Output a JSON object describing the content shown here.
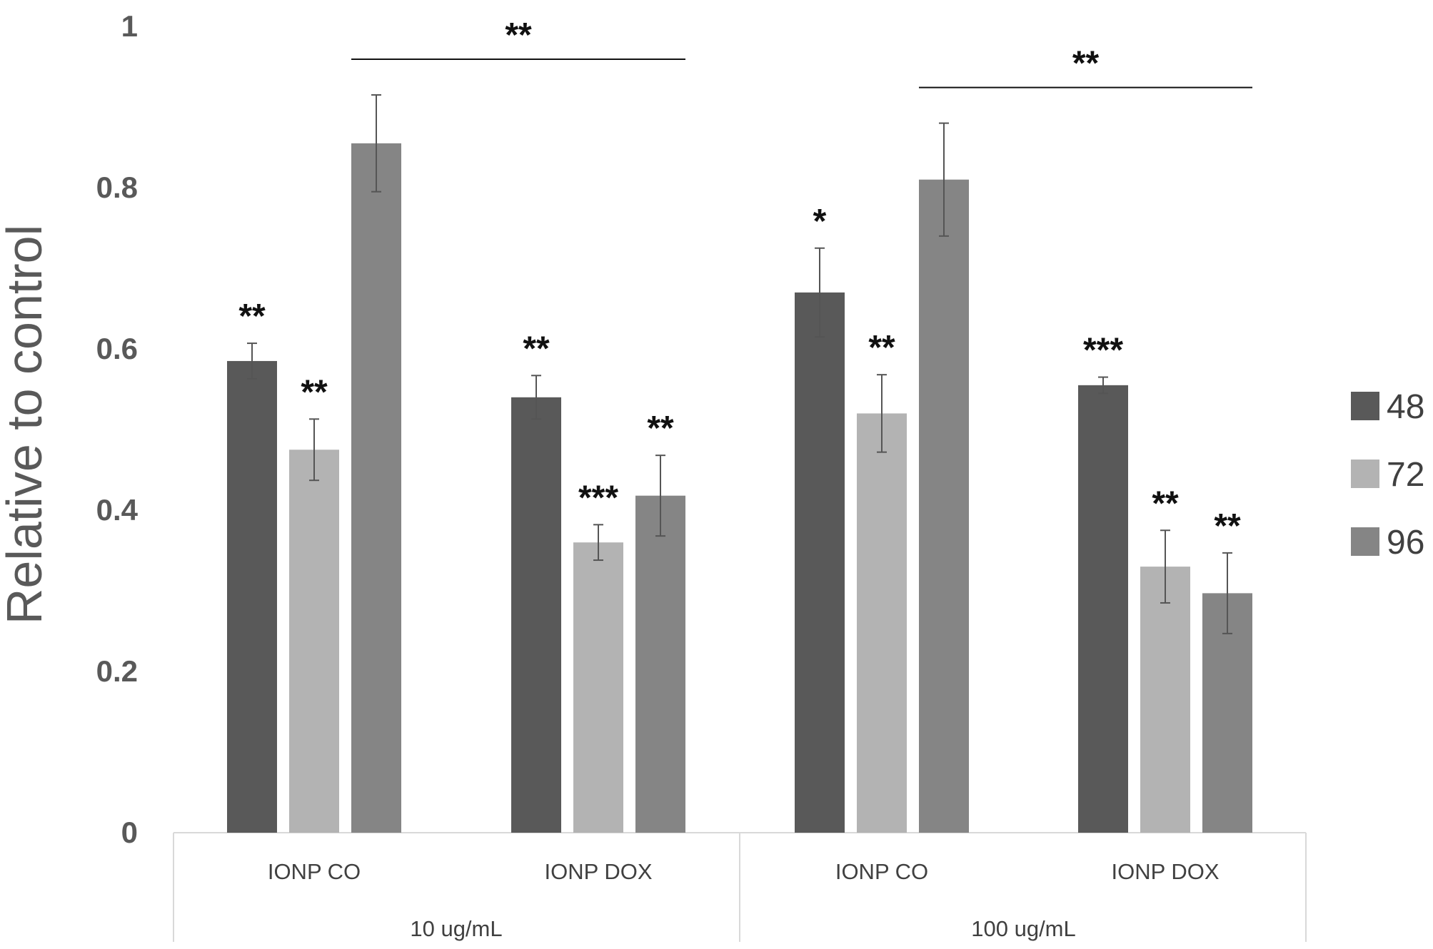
{
  "chart_data": {
    "type": "bar",
    "title": "",
    "ylabel": "Relative to control",
    "xlabel": "",
    "ylim": [
      0,
      1
    ],
    "yticks": [
      "0",
      "0.2",
      "0.4",
      "0.6",
      "0.8",
      "1"
    ],
    "grid": false,
    "legend_position": "right",
    "categories": [
      "IONP CO",
      "IONP DOX",
      "IONP CO",
      "IONP DOX"
    ],
    "groups": [
      {
        "label": "10 ug/mL",
        "categories": [
          0,
          1
        ]
      },
      {
        "label": "100 ug/mL",
        "categories": [
          2,
          3
        ]
      }
    ],
    "series": [
      {
        "name": "48",
        "color": "#595959",
        "values": [
          0.585,
          0.54,
          0.67,
          0.555
        ],
        "errors": [
          0.022,
          0.027,
          0.055,
          0.01
        ],
        "significance": [
          "**",
          "**",
          "*",
          "***"
        ]
      },
      {
        "name": "72",
        "color": "#b3b3b3",
        "values": [
          0.475,
          0.36,
          0.52,
          0.33
        ],
        "errors": [
          0.038,
          0.022,
          0.048,
          0.045
        ],
        "significance": [
          "**",
          "***",
          "**",
          "**"
        ]
      },
      {
        "name": "96",
        "color": "#858585",
        "values": [
          0.855,
          0.418,
          0.81,
          0.297
        ],
        "errors": [
          0.06,
          0.05,
          0.07,
          0.05
        ],
        "significance": [
          "",
          "**",
          "",
          "**"
        ]
      }
    ],
    "brackets": [
      {
        "group": 0,
        "label": "**"
      },
      {
        "group": 1,
        "label": "**"
      }
    ]
  }
}
